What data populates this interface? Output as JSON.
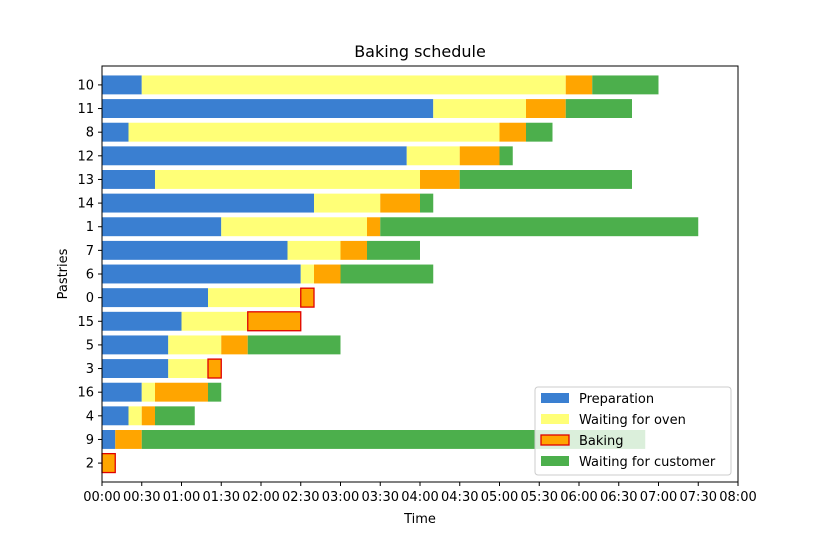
{
  "chart_data": {
    "type": "bar",
    "orientation": "horizontal-stacked",
    "title": "Baking schedule",
    "xlabel": "Time",
    "ylabel": "Pastries",
    "xlim_minutes": [
      0,
      480
    ],
    "x_ticks": [
      "00:00",
      "00:30",
      "01:00",
      "01:30",
      "02:00",
      "02:30",
      "03:00",
      "03:30",
      "04:00",
      "04:30",
      "05:00",
      "05:30",
      "06:00",
      "06:30",
      "07:00",
      "07:30",
      "08:00"
    ],
    "categories": [
      "2",
      "9",
      "4",
      "16",
      "3",
      "5",
      "15",
      "0",
      "6",
      "7",
      "1",
      "14",
      "13",
      "12",
      "8",
      "11",
      "10"
    ],
    "series": [
      {
        "name": "Preparation",
        "color": "#3a7fd1",
        "highlight_edge": false,
        "start": [
          0,
          0,
          0,
          0,
          0,
          0,
          0,
          0,
          0,
          0,
          0,
          0,
          0,
          0,
          0,
          0,
          0
        ],
        "duration": [
          0,
          10,
          20,
          30,
          50,
          50,
          60,
          80,
          150,
          140,
          90,
          160,
          40,
          230,
          20,
          250,
          30
        ]
      },
      {
        "name": "Waiting for oven",
        "color": "#ffff77",
        "highlight_edge": false,
        "start": [
          0,
          10,
          20,
          30,
          50,
          50,
          60,
          80,
          150,
          140,
          90,
          160,
          40,
          230,
          20,
          250,
          30
        ],
        "duration": [
          0,
          0,
          10,
          10,
          30,
          40,
          50,
          70,
          10,
          40,
          110,
          50,
          200,
          40,
          280,
          70,
          320
        ]
      },
      {
        "name": "Baking",
        "color": "#ffa500",
        "highlight_edge": true,
        "start": [
          0,
          10,
          30,
          40,
          80,
          90,
          110,
          150,
          160,
          180,
          200,
          210,
          240,
          270,
          300,
          320,
          350
        ],
        "duration": [
          10,
          20,
          10,
          40,
          10,
          20,
          40,
          10,
          20,
          20,
          10,
          30,
          30,
          30,
          20,
          30,
          20
        ]
      },
      {
        "name": "Waiting for customer",
        "color": "#4caf4c",
        "highlight_edge": false,
        "start": [
          10,
          30,
          40,
          80,
          90,
          110,
          150,
          160,
          180,
          200,
          210,
          240,
          270,
          300,
          320,
          350,
          370
        ],
        "duration": [
          0,
          380,
          30,
          10,
          0,
          70,
          0,
          0,
          70,
          40,
          240,
          10,
          130,
          10,
          20,
          50,
          50
        ]
      }
    ],
    "highlighted_bakes": [
      "2",
      "3",
      "15",
      "0"
    ],
    "legend": [
      "Preparation",
      "Waiting for oven",
      "Baking",
      "Waiting for customer"
    ],
    "legend_position": "lower-right",
    "grid": false
  }
}
